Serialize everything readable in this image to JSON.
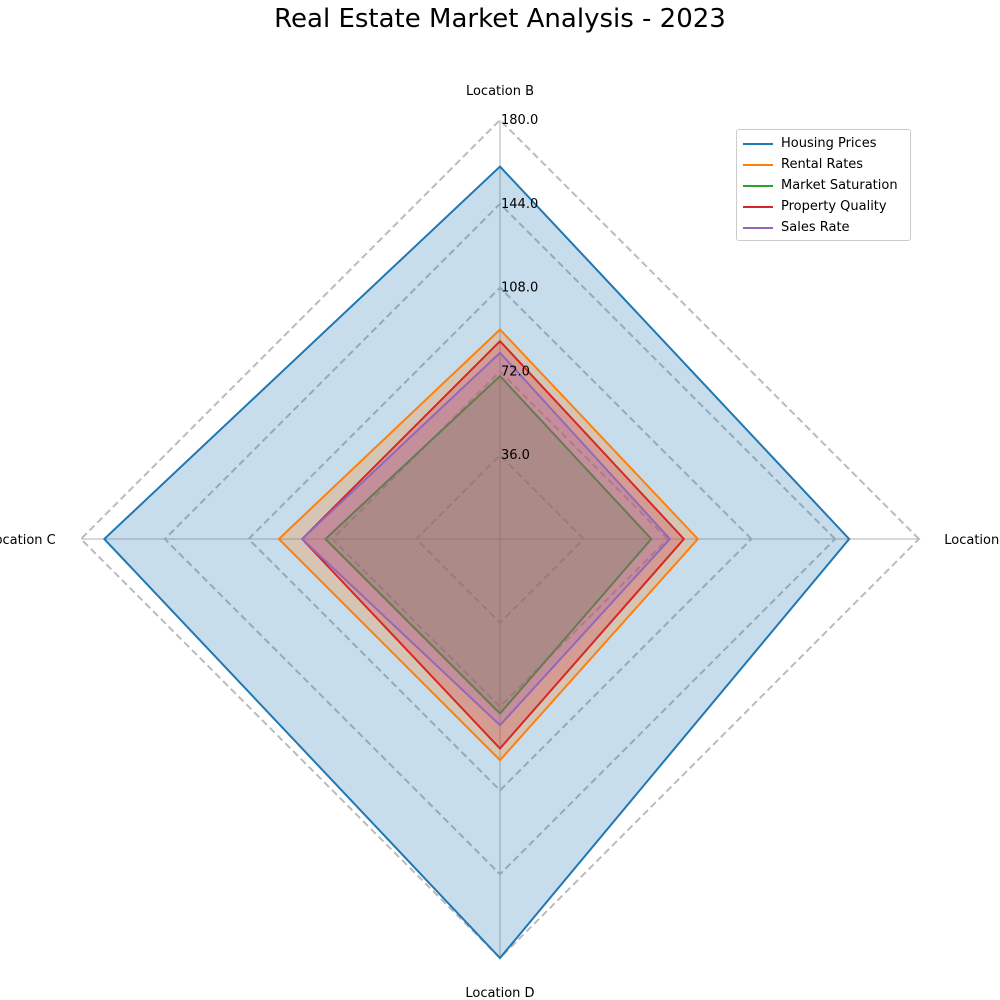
{
  "chart_data": {
    "type": "radar",
    "title": "Real Estate Market Analysis - 2023",
    "categories": [
      "Location A",
      "Location B",
      "Location C",
      "Location D"
    ],
    "rmax": 180,
    "radial_ticks": [
      "36.0",
      "72.0",
      "108.0",
      "144.0",
      "180.0"
    ],
    "radial_tick_values": [
      36,
      72,
      108,
      144,
      180
    ],
    "grid": true,
    "legend_position": "top-right",
    "series": [
      {
        "name": "Housing Prices",
        "values": [
          150,
          160,
          170,
          180
        ],
        "color": "#1f77b4",
        "fill": true
      },
      {
        "name": "Rental Rates",
        "values": [
          85,
          90,
          95,
          95
        ],
        "color": "#ff7f0e",
        "fill": true
      },
      {
        "name": "Market Saturation",
        "values": [
          65,
          70,
          75,
          75
        ],
        "color": "#2ca02c",
        "fill": true
      },
      {
        "name": "Property Quality",
        "values": [
          79,
          85,
          85,
          90
        ],
        "color": "#d62728",
        "fill": true
      },
      {
        "name": "Sales Rate",
        "values": [
          73,
          80,
          85,
          80
        ],
        "color": "#9467bd",
        "fill": true
      }
    ]
  }
}
